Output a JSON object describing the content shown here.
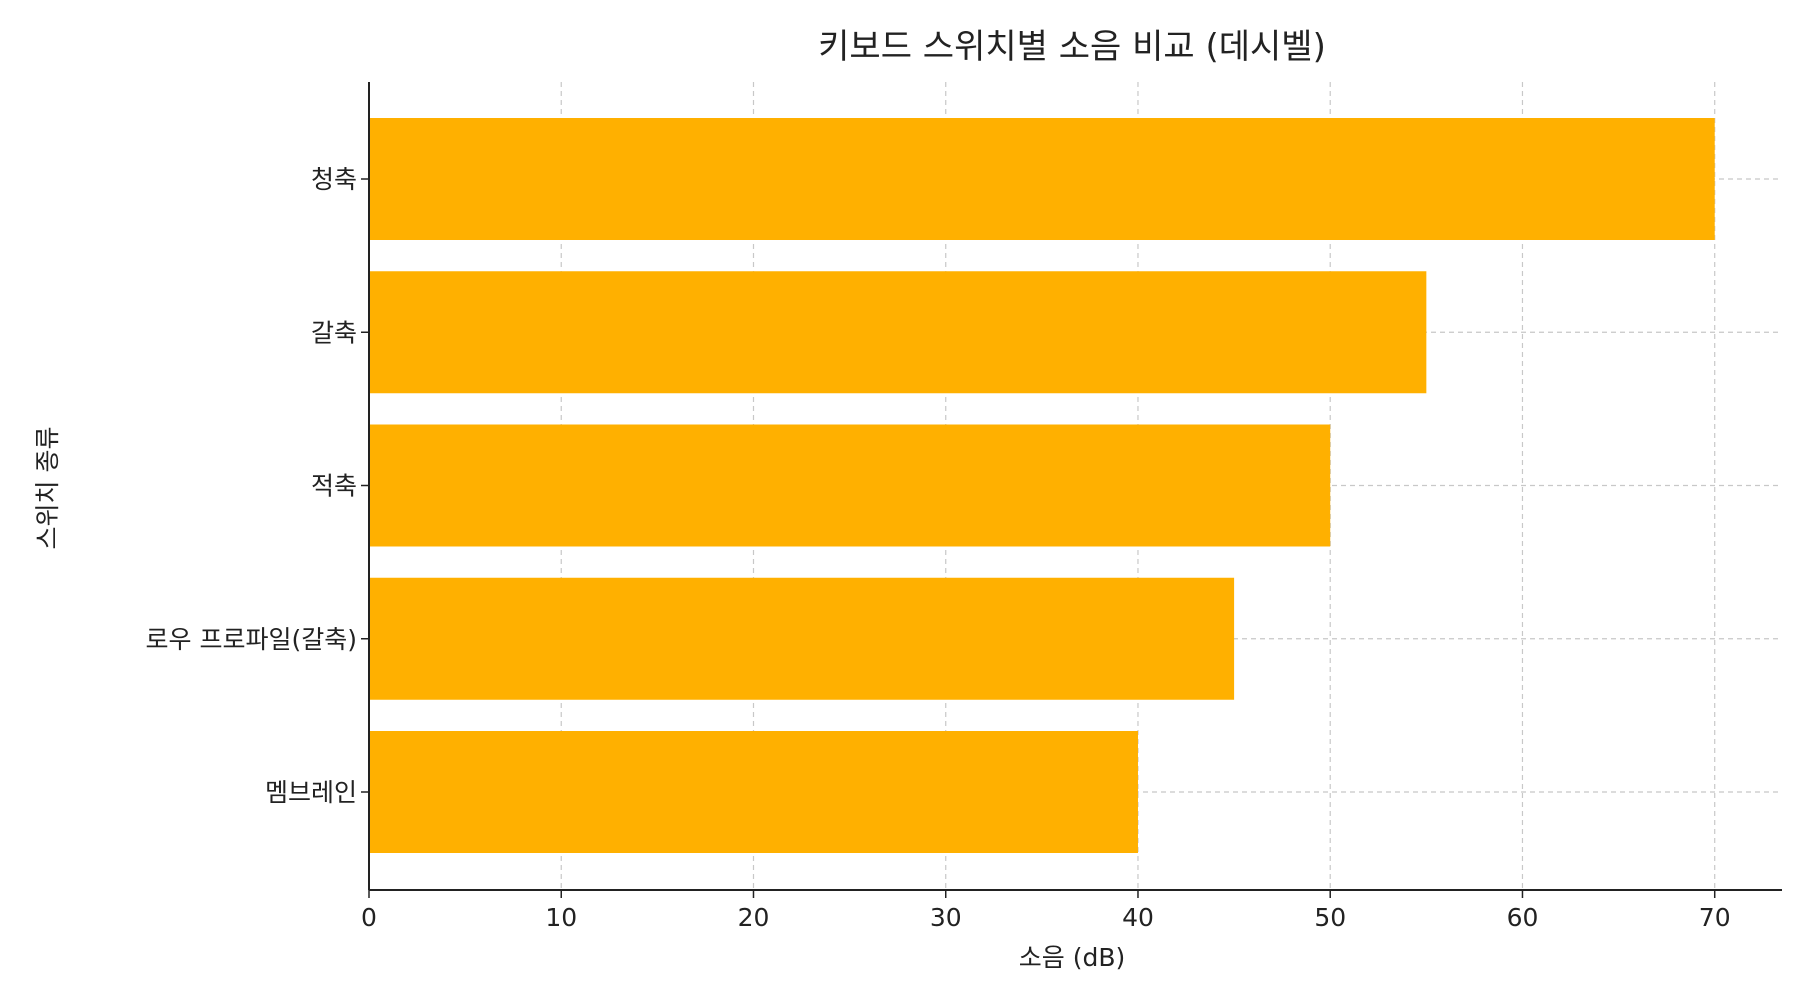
{
  "chart_data": {
    "type": "bar",
    "orientation": "horizontal",
    "title": "키보드 스위치별 소음 비교 (데시벨)",
    "xlabel": "소음 (dB)",
    "ylabel": "스위치 종류",
    "categories": [
      "청축",
      "갈축",
      "적축",
      "로우 프로파일(갈축)",
      "멤브레인"
    ],
    "values": [
      70,
      55,
      50,
      45,
      40
    ],
    "xlim": [
      0,
      73.5
    ],
    "xticks": [
      0,
      10,
      20,
      30,
      40,
      50,
      60,
      70
    ],
    "grid": true,
    "bar_color": "#FFB000"
  }
}
